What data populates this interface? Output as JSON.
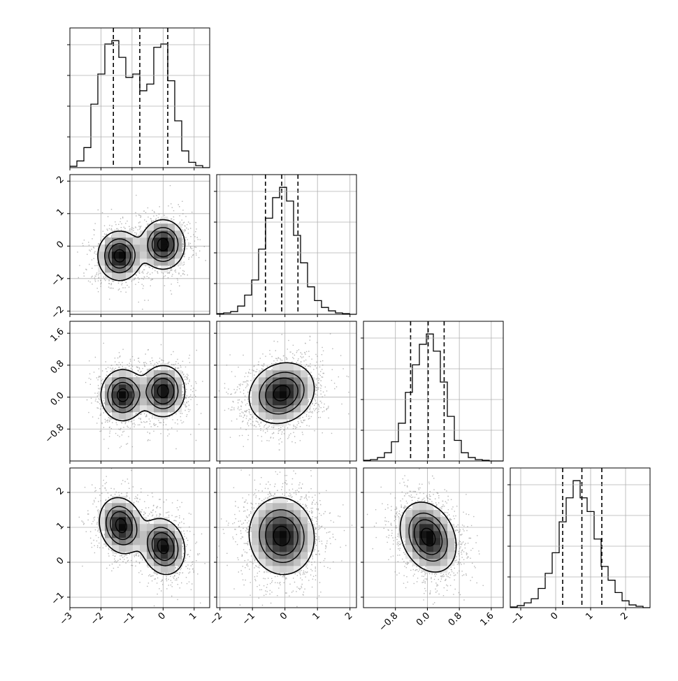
{
  "chart_data": {
    "type": "corner",
    "n_params": 4,
    "grid": true,
    "colors": {
      "line": "#000000",
      "grid": "#b0b0b0",
      "density": "#000000",
      "axes": "#000000"
    },
    "params": [
      {
        "index": 0,
        "range": [
          -3.0,
          1.5
        ],
        "ticks": [
          -3,
          -2,
          -1,
          0,
          1
        ],
        "tick_labels": [
          "−3",
          "−2",
          "−1",
          "0",
          "1"
        ]
      },
      {
        "index": 1,
        "range": [
          -2.1,
          2.2
        ],
        "ticks": [
          -2,
          -1,
          0,
          1,
          2
        ],
        "tick_labels": [
          "−2",
          "−1",
          "0",
          "1",
          "2"
        ]
      },
      {
        "index": 2,
        "range": [
          -1.6,
          1.9
        ],
        "ticks": [
          -0.8,
          0.0,
          0.8,
          1.6
        ],
        "tick_labels": [
          "−0.8",
          "0.0",
          "0.8",
          "1.6"
        ]
      },
      {
        "index": 3,
        "range": [
          -1.3,
          2.7
        ],
        "ticks": [
          -1,
          0,
          1,
          2
        ],
        "tick_labels": [
          "−1",
          "0",
          "1",
          "2"
        ]
      }
    ],
    "diagonal": [
      {
        "param": 0,
        "quantiles": [
          -1.6,
          -0.75,
          0.15
        ],
        "bin_edges": [
          -3.0,
          -2.775,
          -2.55,
          -2.325,
          -2.1,
          -1.875,
          -1.65,
          -1.425,
          -1.2,
          -0.975,
          -0.75,
          -0.525,
          -0.3,
          -0.075,
          0.15,
          0.375,
          0.6,
          0.825,
          1.05,
          1.275,
          1.5
        ],
        "counts": [
          2,
          10,
          30,
          95,
          140,
          185,
          190,
          165,
          135,
          140,
          115,
          125,
          180,
          185,
          130,
          70,
          25,
          8,
          3,
          0
        ]
      },
      {
        "param": 1,
        "quantiles": [
          -0.6,
          -0.1,
          0.4
        ],
        "bin_edges": [
          -2.1,
          -1.885,
          -1.67,
          -1.455,
          -1.24,
          -1.025,
          -0.81,
          -0.595,
          -0.38,
          -0.165,
          0.05,
          0.265,
          0.48,
          0.695,
          0.91,
          1.125,
          1.34,
          1.555,
          1.77,
          1.985,
          2.2
        ],
        "counts": [
          1,
          2,
          4,
          12,
          28,
          50,
          95,
          140,
          170,
          185,
          165,
          115,
          75,
          40,
          20,
          10,
          5,
          2,
          1,
          0
        ]
      },
      {
        "param": 2,
        "quantiles": [
          -0.42,
          0.02,
          0.42
        ],
        "bin_edges": [
          -1.6,
          -1.425,
          -1.25,
          -1.075,
          -0.9,
          -0.725,
          -0.55,
          -0.375,
          -0.2,
          -0.025,
          0.15,
          0.325,
          0.5,
          0.675,
          0.85,
          1.025,
          1.2,
          1.375,
          1.55,
          1.725,
          1.9
        ],
        "counts": [
          1,
          2,
          5,
          12,
          28,
          55,
          100,
          140,
          170,
          185,
          160,
          115,
          65,
          30,
          12,
          5,
          2,
          1,
          0,
          0
        ]
      },
      {
        "param": 3,
        "quantiles": [
          0.2,
          0.75,
          1.32
        ],
        "bin_edges": [
          -1.3,
          -1.1,
          -0.9,
          -0.7,
          -0.5,
          -0.3,
          -0.1,
          0.1,
          0.3,
          0.5,
          0.7,
          0.9,
          1.1,
          1.3,
          1.5,
          1.7,
          1.9,
          2.1,
          2.3,
          2.5,
          2.7
        ],
        "counts": [
          1,
          3,
          7,
          13,
          28,
          50,
          80,
          125,
          160,
          185,
          160,
          140,
          100,
          60,
          40,
          22,
          10,
          4,
          2,
          0
        ]
      }
    ],
    "off_diagonal": [
      {
        "x": 0,
        "y": 1,
        "modes": [
          {
            "cx": -1.4,
            "cy": -0.3,
            "sx": 0.35,
            "sy": 0.38,
            "rho": 0.0,
            "w": 0.5
          },
          {
            "cx": 0.0,
            "cy": 0.05,
            "sx": 0.35,
            "sy": 0.38,
            "rho": 0.0,
            "w": 0.5
          }
        ]
      },
      {
        "x": 0,
        "y": 2,
        "modes": [
          {
            "cx": -1.3,
            "cy": 0.05,
            "sx": 0.35,
            "sy": 0.32,
            "rho": 0.0,
            "w": 0.5
          },
          {
            "cx": 0.0,
            "cy": 0.15,
            "sx": 0.35,
            "sy": 0.32,
            "rho": 0.0,
            "w": 0.5
          }
        ]
      },
      {
        "x": 0,
        "y": 3,
        "modes": [
          {
            "cx": -1.35,
            "cy": 1.05,
            "sx": 0.35,
            "sy": 0.4,
            "rho": -0.15,
            "w": 0.5
          },
          {
            "cx": 0.0,
            "cy": 0.45,
            "sx": 0.35,
            "sy": 0.4,
            "rho": -0.15,
            "w": 0.5
          }
        ]
      },
      {
        "x": 1,
        "y": 2,
        "modes": [
          {
            "cx": -0.1,
            "cy": 0.1,
            "sx": 0.5,
            "sy": 0.38,
            "rho": 0.15,
            "w": 1.0
          }
        ]
      },
      {
        "x": 1,
        "y": 3,
        "modes": [
          {
            "cx": -0.1,
            "cy": 0.75,
            "sx": 0.5,
            "sy": 0.55,
            "rho": -0.05,
            "w": 1.0
          }
        ]
      },
      {
        "x": 2,
        "y": 3,
        "modes": [
          {
            "cx": 0.02,
            "cy": 0.72,
            "sx": 0.35,
            "sy": 0.5,
            "rho": -0.25,
            "w": 1.0
          }
        ]
      }
    ]
  }
}
